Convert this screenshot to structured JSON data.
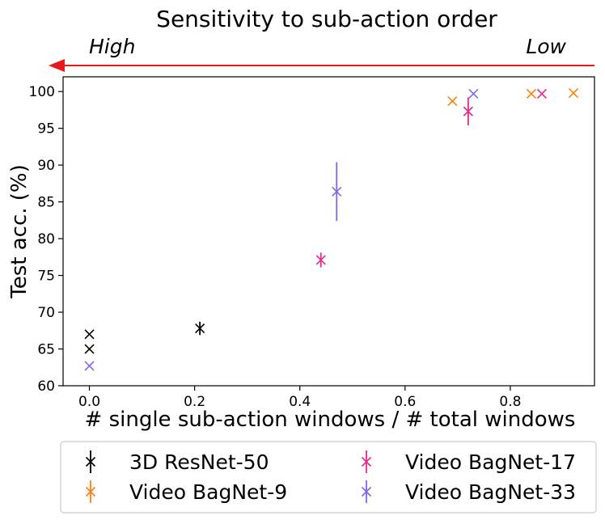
{
  "chart_data": {
    "type": "scatter",
    "title": "Sensitivity to sub-action order",
    "arrow": {
      "left_label": "High",
      "right_label": "Low",
      "color": "#e41a1c"
    },
    "xlabel": "# single sub-action windows / # total windows",
    "ylabel": "Test acc. (%)",
    "xlim": [
      -0.05,
      0.96
    ],
    "ylim": [
      60,
      102
    ],
    "xticks": [
      0.0,
      0.2,
      0.4,
      0.6,
      0.8
    ],
    "xtick_labels": [
      "0.0",
      "0.2",
      "0.4",
      "0.6",
      "0.8"
    ],
    "yticks": [
      60,
      65,
      70,
      75,
      80,
      85,
      90,
      95,
      100
    ],
    "ytick_labels": [
      "60",
      "65",
      "70",
      "75",
      "80",
      "85",
      "90",
      "95",
      "100"
    ],
    "grid": false,
    "legend": "bottom-outside",
    "series": [
      {
        "name": "3D ResNet-50",
        "color": "#000000",
        "points": [
          {
            "x": 0.0,
            "y": 67.0,
            "err": 0
          },
          {
            "x": 0.0,
            "y": 65.0,
            "err": 0
          },
          {
            "x": 0.21,
            "y": 67.8,
            "err": 0.9
          }
        ]
      },
      {
        "name": "Video BagNet-9",
        "color": "#ff7f0e",
        "points": [
          {
            "x": 0.69,
            "y": 98.7,
            "err": 0
          },
          {
            "x": 0.84,
            "y": 99.7,
            "err": 0
          },
          {
            "x": 0.92,
            "y": 99.8,
            "err": 0
          }
        ]
      },
      {
        "name": "Video BagNet-17",
        "color": "#e7298a",
        "points": [
          {
            "x": 0.44,
            "y": 77.1,
            "err": 1.0
          },
          {
            "x": 0.72,
            "y": 97.3,
            "err": 1.9
          },
          {
            "x": 0.86,
            "y": 99.7,
            "err": 0
          }
        ]
      },
      {
        "name": "Video BagNet-33",
        "color": "#7b68ee",
        "points": [
          {
            "x": 0.0,
            "y": 62.7,
            "err": 0
          },
          {
            "x": 0.47,
            "y": 86.4,
            "err": 4.0
          },
          {
            "x": 0.73,
            "y": 99.7,
            "err": 0
          }
        ]
      }
    ]
  }
}
